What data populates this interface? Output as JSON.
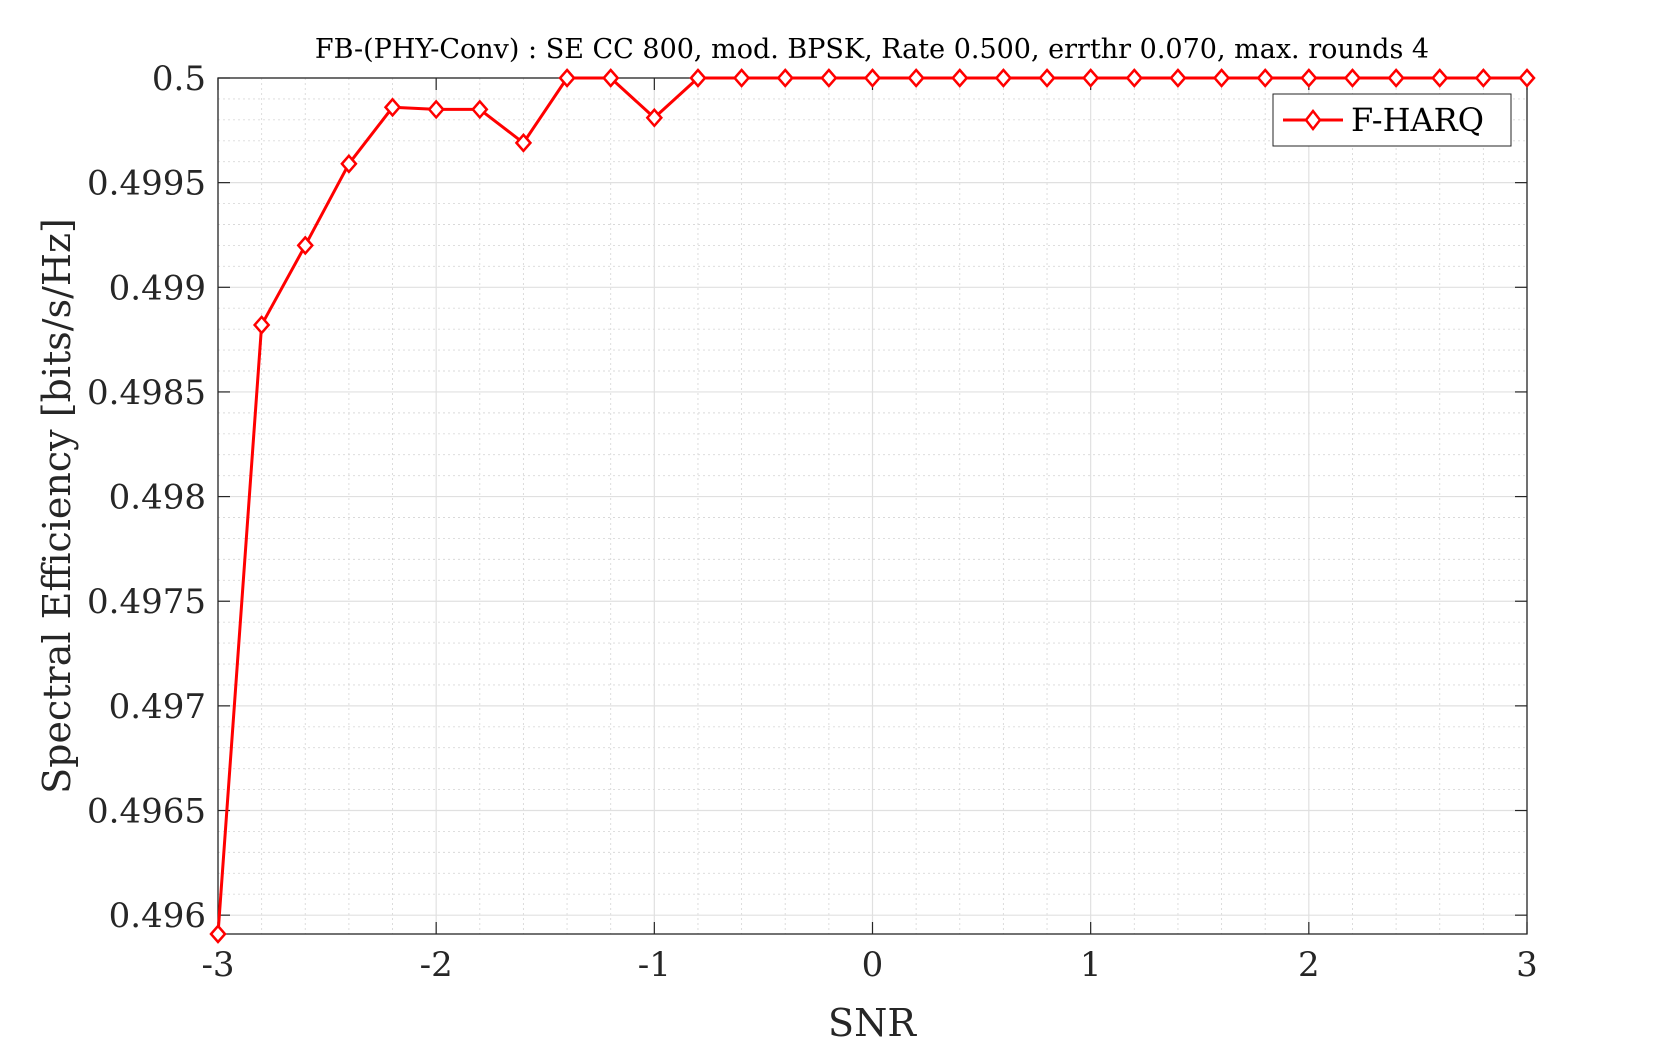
{
  "chart_data": {
    "type": "line",
    "title": "FB-(PHY-Conv) : SE CC 800, mod. BPSK, Rate 0.500, errthr 0.070, max. rounds 4",
    "xlabel": "SNR",
    "ylabel": "Spectral Efficiency [bits/s/Hz]",
    "xlim": [
      -3,
      3
    ],
    "ylim": [
      0.49591,
      0.5
    ],
    "x_ticks": [
      -3,
      -2,
      -1,
      0,
      1,
      2,
      3
    ],
    "x_tick_labels": [
      "-3",
      "-2",
      "-1",
      "0",
      "1",
      "2",
      "3"
    ],
    "y_ticks": [
      0.496,
      0.4965,
      0.497,
      0.4975,
      0.498,
      0.4985,
      0.499,
      0.4995,
      0.5
    ],
    "y_tick_labels": [
      "0.496",
      "0.4965",
      "0.497",
      "0.4975",
      "0.498",
      "0.4985",
      "0.499",
      "0.4995",
      "0.5"
    ],
    "grid": true,
    "minor_grid": true,
    "legend_position": "top-right",
    "series": [
      {
        "name": "F-HARQ",
        "color": "#ff0000",
        "marker": "diamond",
        "x": [
          -3,
          -2.8,
          -2.6,
          -2.4,
          -2.2,
          -2,
          -1.8,
          -1.6,
          -1.4,
          -1.2,
          -1,
          -0.8,
          -0.6,
          -0.4,
          -0.2,
          0,
          0.2,
          0.4,
          0.6,
          0.8,
          1,
          1.2,
          1.4,
          1.6,
          1.8,
          2,
          2.2,
          2.4,
          2.6,
          2.8,
          3
        ],
        "y": [
          0.49591,
          0.49882,
          0.4992,
          0.49959,
          0.49986,
          0.49985,
          0.49985,
          0.49969,
          0.5,
          0.5,
          0.49981,
          0.5,
          0.5,
          0.5,
          0.5,
          0.5,
          0.5,
          0.5,
          0.5,
          0.5,
          0.5,
          0.5,
          0.5,
          0.5,
          0.5,
          0.5,
          0.5,
          0.5,
          0.5,
          0.5,
          0.5
        ]
      }
    ]
  }
}
